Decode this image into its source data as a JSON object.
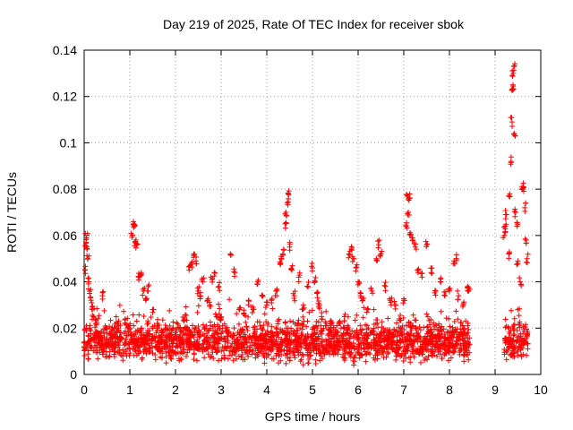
{
  "chart_data": {
    "type": "scatter",
    "title": "Day 219 of 2025, Rate Of TEC Index for receiver sbok",
    "xlabel": "GPS time / hours",
    "ylabel": "ROTI / TECUs",
    "xlim": [
      0,
      10
    ],
    "ylim": [
      0,
      0.14
    ],
    "x_ticks": [
      0,
      1,
      2,
      3,
      4,
      5,
      6,
      7,
      8,
      9,
      10
    ],
    "y_ticks": [
      0,
      0.02,
      0.04,
      0.06,
      0.08,
      0.1,
      0.12,
      0.14
    ],
    "x_tick_labels": [
      "0",
      "1",
      "2",
      "3",
      "4",
      "5",
      "6",
      "7",
      "8",
      "9",
      "10"
    ],
    "y_tick_labels": [
      "0",
      "0.02",
      "0.04",
      "0.06",
      "0.08",
      "0.1",
      "0.12",
      "0.14"
    ],
    "grid": true,
    "marker": "+",
    "color": "#ff0000",
    "series": [
      {
        "points": [
          [
            0.0,
            0.012
          ],
          [
            0.02,
            0.045
          ],
          [
            0.04,
            0.057
          ],
          [
            0.05,
            0.059
          ],
          [
            0.06,
            0.055
          ],
          [
            0.08,
            0.05
          ],
          [
            0.1,
            0.04
          ],
          [
            0.12,
            0.035
          ],
          [
            0.15,
            0.032
          ],
          [
            0.18,
            0.028
          ],
          [
            0.2,
            0.025
          ],
          [
            0.25,
            0.022
          ],
          [
            0.3,
            0.018
          ],
          [
            0.35,
            0.015
          ],
          [
            0.4,
            0.034
          ],
          [
            0.5,
            0.02
          ],
          [
            0.6,
            0.016
          ],
          [
            0.7,
            0.014
          ],
          [
            0.8,
            0.018
          ],
          [
            0.9,
            0.022
          ],
          [
            1.0,
            0.02
          ],
          [
            1.05,
            0.06
          ],
          [
            1.08,
            0.066
          ],
          [
            1.1,
            0.064
          ],
          [
            1.12,
            0.057
          ],
          [
            1.15,
            0.056
          ],
          [
            1.2,
            0.042
          ],
          [
            1.25,
            0.044
          ],
          [
            1.3,
            0.036
          ],
          [
            1.35,
            0.032
          ],
          [
            1.4,
            0.038
          ],
          [
            1.5,
            0.028
          ],
          [
            1.6,
            0.022
          ],
          [
            1.7,
            0.018
          ],
          [
            1.8,
            0.02
          ],
          [
            1.9,
            0.016
          ],
          [
            2.0,
            0.018
          ],
          [
            2.1,
            0.02
          ],
          [
            2.2,
            0.024
          ],
          [
            2.3,
            0.045
          ],
          [
            2.35,
            0.048
          ],
          [
            2.4,
            0.052
          ],
          [
            2.45,
            0.049
          ],
          [
            2.5,
            0.036
          ],
          [
            2.55,
            0.034
          ],
          [
            2.6,
            0.04
          ],
          [
            2.7,
            0.032
          ],
          [
            2.75,
            0.03
          ],
          [
            2.8,
            0.041
          ],
          [
            2.85,
            0.044
          ],
          [
            2.9,
            0.025
          ],
          [
            2.95,
            0.038
          ],
          [
            3.0,
            0.024
          ],
          [
            3.1,
            0.02
          ],
          [
            3.2,
            0.052
          ],
          [
            3.3,
            0.044
          ],
          [
            3.4,
            0.028
          ],
          [
            3.5,
            0.026
          ],
          [
            3.6,
            0.032
          ],
          [
            3.7,
            0.028
          ],
          [
            3.8,
            0.04
          ],
          [
            3.9,
            0.034
          ],
          [
            4.0,
            0.03
          ],
          [
            4.1,
            0.032
          ],
          [
            4.2,
            0.036
          ],
          [
            4.3,
            0.048
          ],
          [
            4.32,
            0.05
          ],
          [
            4.35,
            0.052
          ],
          [
            4.4,
            0.065
          ],
          [
            4.42,
            0.07
          ],
          [
            4.45,
            0.074
          ],
          [
            4.47,
            0.078
          ],
          [
            4.5,
            0.055
          ],
          [
            4.55,
            0.045
          ],
          [
            4.6,
            0.034
          ],
          [
            4.7,
            0.042
          ],
          [
            4.8,
            0.03
          ],
          [
            4.9,
            0.038
          ],
          [
            5.0,
            0.046
          ],
          [
            5.05,
            0.04
          ],
          [
            5.1,
            0.035
          ],
          [
            5.15,
            0.03
          ],
          [
            5.2,
            0.025
          ],
          [
            5.3,
            0.022
          ],
          [
            5.4,
            0.02
          ],
          [
            5.5,
            0.018
          ],
          [
            5.6,
            0.022
          ],
          [
            5.7,
            0.025
          ],
          [
            5.8,
            0.052
          ],
          [
            5.85,
            0.054
          ],
          [
            5.9,
            0.05
          ],
          [
            5.95,
            0.046
          ],
          [
            6.0,
            0.04
          ],
          [
            6.05,
            0.034
          ],
          [
            6.1,
            0.032
          ],
          [
            6.2,
            0.028
          ],
          [
            6.3,
            0.036
          ],
          [
            6.4,
            0.05
          ],
          [
            6.45,
            0.056
          ],
          [
            6.5,
            0.052
          ],
          [
            6.6,
            0.038
          ],
          [
            6.7,
            0.032
          ],
          [
            6.8,
            0.03
          ],
          [
            6.9,
            0.024
          ],
          [
            7.0,
            0.032
          ],
          [
            7.05,
            0.064
          ],
          [
            7.08,
            0.077
          ],
          [
            7.1,
            0.07
          ],
          [
            7.12,
            0.076
          ],
          [
            7.15,
            0.06
          ],
          [
            7.2,
            0.058
          ],
          [
            7.25,
            0.055
          ],
          [
            7.3,
            0.045
          ],
          [
            7.4,
            0.042
          ],
          [
            7.5,
            0.056
          ],
          [
            7.6,
            0.044
          ],
          [
            7.7,
            0.036
          ],
          [
            7.8,
            0.04
          ],
          [
            7.9,
            0.034
          ],
          [
            8.0,
            0.036
          ],
          [
            8.1,
            0.049
          ],
          [
            8.15,
            0.05
          ],
          [
            8.2,
            0.034
          ],
          [
            8.3,
            0.03
          ],
          [
            8.4,
            0.038
          ],
          [
            8.42,
            0.036
          ],
          [
            9.2,
            0.06
          ],
          [
            9.22,
            0.064
          ],
          [
            9.25,
            0.069
          ],
          [
            9.3,
            0.052
          ],
          [
            9.32,
            0.078
          ],
          [
            9.35,
            0.092
          ],
          [
            9.37,
            0.109
          ],
          [
            9.38,
            0.123
          ],
          [
            9.39,
            0.125
          ],
          [
            9.4,
            0.13
          ],
          [
            9.41,
            0.133
          ],
          [
            9.42,
            0.104
          ],
          [
            9.45,
            0.07
          ],
          [
            9.48,
            0.064
          ],
          [
            9.5,
            0.048
          ],
          [
            9.55,
            0.04
          ],
          [
            9.6,
            0.08
          ],
          [
            9.62,
            0.081
          ],
          [
            9.65,
            0.072
          ],
          [
            9.68,
            0.058
          ],
          [
            9.7,
            0.05
          ]
        ]
      }
    ],
    "dense_regions": [
      {
        "x_range": [
          0,
          8.45
        ],
        "y_median": 0.014,
        "y_spread": 0.011,
        "y_min": 0.004
      },
      {
        "x_range": [
          9.2,
          9.72
        ],
        "y_median": 0.014,
        "y_spread": 0.012,
        "y_min": 0.005
      }
    ]
  }
}
